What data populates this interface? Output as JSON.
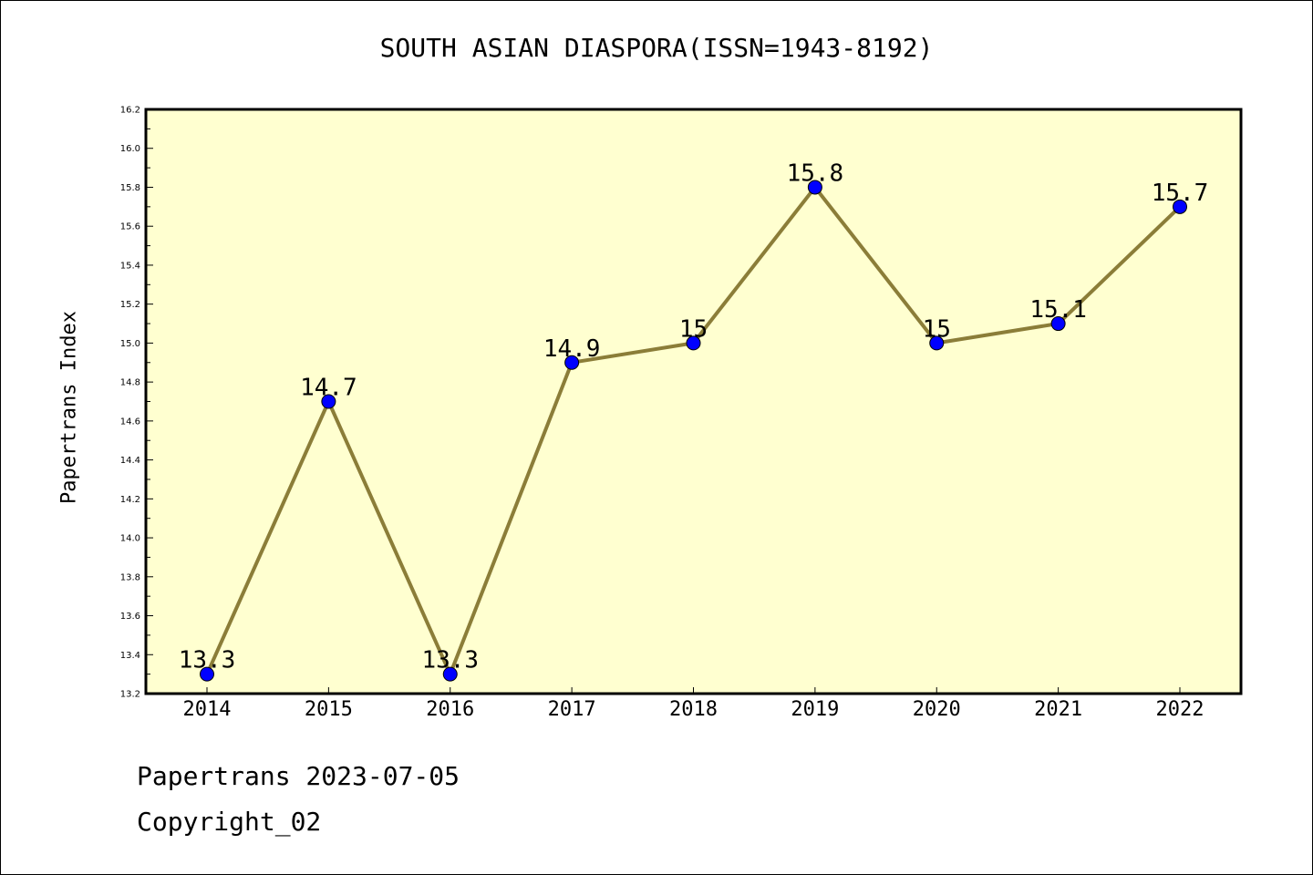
{
  "footer": {
    "line1": "Papertrans 2023-07-05",
    "line2": "Copyright_02"
  },
  "colors": {
    "plot_background": "#ffffd0",
    "line": "#8b7d38",
    "marker": "#0000ff"
  },
  "chart_data": {
    "type": "line",
    "title": "SOUTH ASIAN DIASPORA(ISSN=1943-8192)",
    "xlabel": "",
    "ylabel": "Papertrans Index",
    "categories": [
      "2014",
      "2015",
      "2016",
      "2017",
      "2018",
      "2019",
      "2020",
      "2021",
      "2022"
    ],
    "series": [
      {
        "values": [
          13.3,
          14.7,
          13.3,
          14.9,
          15.0,
          15.8,
          15.0,
          15.1,
          15.7
        ],
        "labels": [
          "13.3",
          "14.7",
          "13.3",
          "14.9",
          "15",
          "15.8",
          "15",
          "15.1",
          "15.7"
        ]
      }
    ],
    "ylim": [
      13.2,
      16.2
    ],
    "yticks": [
      "13.2",
      "13.4",
      "13.6",
      "13.8",
      "14.0",
      "14.2",
      "14.4",
      "14.6",
      "14.8",
      "15.0",
      "15.2",
      "15.4",
      "15.6",
      "15.8",
      "16.0",
      "16.2"
    ],
    "grid": false,
    "legend": "none"
  }
}
